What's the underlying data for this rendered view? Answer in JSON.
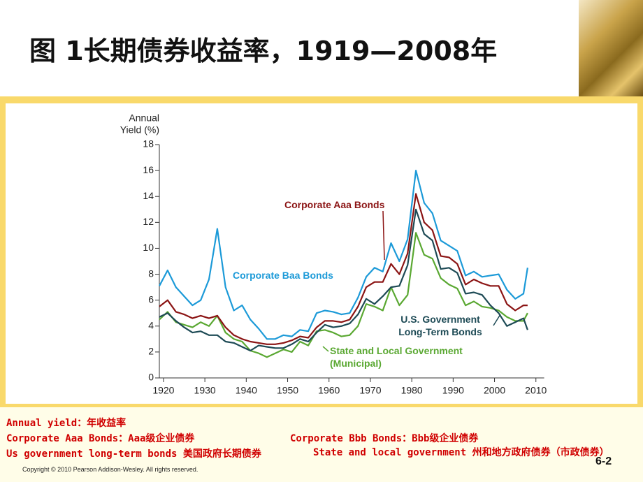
{
  "title": "图 1长期债券收益率，1919—2008年",
  "chart_data": {
    "type": "line",
    "ylabel": [
      "Annual",
      "Yield (%)"
    ],
    "x": [
      1919,
      1921,
      1923,
      1925,
      1927,
      1929,
      1931,
      1933,
      1935,
      1937,
      1939,
      1941,
      1943,
      1945,
      1947,
      1949,
      1951,
      1953,
      1955,
      1957,
      1959,
      1961,
      1963,
      1965,
      1967,
      1969,
      1971,
      1973,
      1975,
      1977,
      1979,
      1981,
      1983,
      1985,
      1987,
      1989,
      1991,
      1993,
      1995,
      1997,
      1999,
      2001,
      2003,
      2005,
      2007,
      2008
    ],
    "series": [
      {
        "name": "Corporate Baa Bonds",
        "color": "#1c9ad8",
        "values": [
          7.1,
          8.3,
          7.0,
          6.3,
          5.6,
          6.0,
          7.6,
          11.5,
          7.0,
          5.2,
          5.6,
          4.5,
          3.8,
          3.0,
          3.0,
          3.3,
          3.2,
          3.7,
          3.6,
          5.0,
          5.2,
          5.1,
          4.9,
          5.0,
          6.2,
          7.8,
          8.5,
          8.2,
          10.4,
          9.0,
          10.7,
          16.0,
          13.5,
          12.7,
          10.6,
          10.2,
          9.8,
          7.9,
          8.2,
          7.8,
          7.9,
          8.0,
          6.8,
          6.1,
          6.5,
          8.5
        ]
      },
      {
        "name": "Corporate Aaa Bonds",
        "color": "#8b1414",
        "values": [
          5.5,
          6.0,
          5.1,
          4.9,
          4.6,
          4.8,
          4.6,
          4.8,
          3.9,
          3.3,
          3.0,
          2.8,
          2.7,
          2.6,
          2.6,
          2.7,
          2.9,
          3.2,
          3.1,
          3.9,
          4.4,
          4.4,
          4.3,
          4.5,
          5.5,
          7.0,
          7.4,
          7.4,
          8.8,
          8.0,
          9.6,
          14.2,
          12.0,
          11.4,
          9.4,
          9.3,
          8.8,
          7.2,
          7.6,
          7.3,
          7.1,
          7.1,
          5.7,
          5.2,
          5.6,
          5.6
        ]
      },
      {
        "name": "U.S. Government Long-Term Bonds",
        "color": "#1d4a55",
        "values": [
          4.7,
          5.0,
          4.4,
          3.9,
          3.5,
          3.6,
          3.3,
          3.3,
          2.8,
          2.7,
          2.4,
          2.1,
          2.5,
          2.4,
          2.3,
          2.3,
          2.6,
          3.0,
          2.8,
          3.5,
          4.1,
          3.9,
          4.0,
          4.2,
          4.9,
          6.1,
          5.7,
          6.3,
          7.0,
          7.1,
          8.7,
          13.0,
          11.1,
          10.6,
          8.4,
          8.5,
          8.1,
          6.5,
          6.6,
          6.4,
          5.6,
          5.0,
          4.0,
          4.3,
          4.6,
          3.7
        ]
      },
      {
        "name": "State and Local Government (Municipal)",
        "color": "#5aa832",
        "values": [
          4.5,
          5.1,
          4.3,
          4.1,
          3.9,
          4.3,
          4.0,
          4.8,
          3.5,
          3.0,
          2.8,
          2.1,
          1.9,
          1.6,
          1.9,
          2.2,
          2.0,
          2.8,
          2.5,
          3.6,
          3.7,
          3.5,
          3.2,
          3.3,
          4.0,
          5.7,
          5.5,
          5.2,
          7.0,
          5.6,
          6.4,
          11.2,
          9.5,
          9.2,
          7.7,
          7.2,
          6.9,
          5.6,
          5.9,
          5.5,
          5.4,
          5.2,
          4.7,
          4.4,
          4.4,
          5.0
        ]
      }
    ],
    "xlim": [
      1919,
      2012
    ],
    "ylim": [
      0,
      18
    ],
    "xticks": [
      1920,
      1930,
      1940,
      1950,
      1960,
      1970,
      1980,
      1990,
      2000,
      2010
    ],
    "yticks": [
      0,
      2,
      4,
      6,
      8,
      10,
      12,
      14,
      16,
      18
    ]
  },
  "notes": [
    "Annual yield：年收益率",
    "Corporate Aaa Bonds：Aaa级企业债券",
    "Corporate Bbb Bonds：Bbb级企业债券",
    "Us government long-term bonds 美国政府长期债券",
    "State and local government 州和地方政府债券（市政债券）"
  ],
  "copyright": "Copyright © 2010 Pearson Addison-Wesley. All rights reserved.",
  "page_number": "6-2"
}
